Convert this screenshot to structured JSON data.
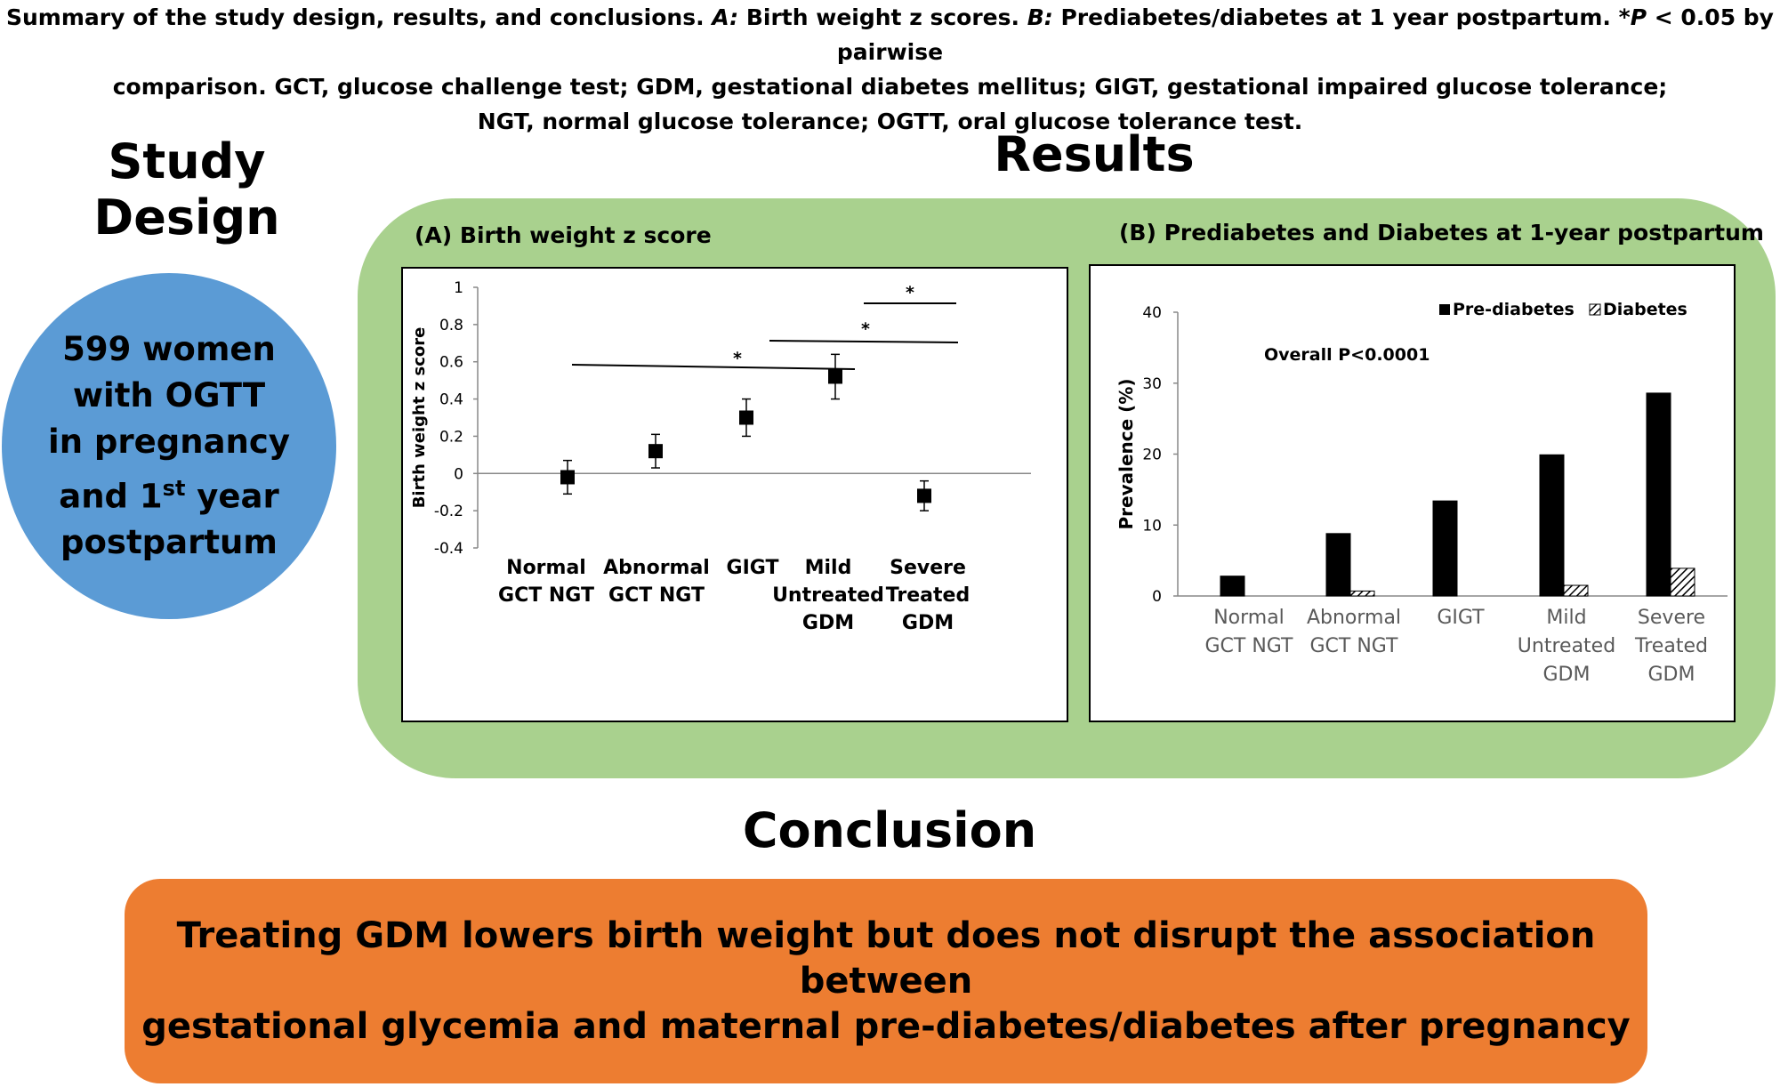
{
  "caption": {
    "line1_pre": "Summary of the study design, results, and conclusions. ",
    "a_label": "A:",
    "line1_mid": " Birth weight z scores. ",
    "b_label": "B:",
    "line1_post": " Prediabetes/diabetes at 1 year postpartum. *",
    "p_label": "P",
    "line1_end": " < 0.05 by pairwise",
    "line2": "comparison. GCT, glucose challenge test; GDM, gestational diabetes mellitus; GIGT, gestational impaired glucose tolerance;",
    "line3": "NGT, normal glucose tolerance; OGTT, oral glucose tolerance test."
  },
  "study_design": {
    "title": "Study Design",
    "circle_lines": [
      "599 women",
      "with OGTT",
      "in pregnancy"
    ],
    "circle_line4_pre": "and 1",
    "circle_line4_sup": "st",
    "circle_line4_post": " year",
    "circle_line5": "postpartum"
  },
  "results": {
    "title": "Results"
  },
  "conclusion": {
    "title": "Conclusion",
    "line1": "Treating GDM lowers birth weight but does not disrupt the association between",
    "line2": "gestational glycemia and maternal pre-diabetes/diabetes after pregnancy"
  },
  "colors": {
    "circle": "#5b9bd5",
    "results_panel": "#a9d18e",
    "conclusion": "#ed7d31"
  },
  "chart_data": [
    {
      "type": "scatter",
      "title": "(A) Birth weight z score",
      "ylabel": "Birth weight z score",
      "ylim": [
        -0.4,
        1
      ],
      "yticks": [
        "1",
        "0.8",
        "0.6",
        "0.4",
        "0.2",
        "0",
        "-0.2",
        "-0.4"
      ],
      "ytick_values": [
        1,
        0.8,
        0.6,
        0.4,
        0.2,
        0,
        -0.2,
        -0.4
      ],
      "categories": [
        [
          "Normal",
          "GCT NGT"
        ],
        [
          "Abnormal",
          "GCT NGT"
        ],
        [
          "GIGT"
        ],
        [
          "Mild",
          "Untreated",
          "GDM"
        ],
        [
          "Severe",
          "Treated",
          "GDM"
        ]
      ],
      "values": [
        -0.02,
        0.12,
        0.3,
        0.52,
        -0.12
      ],
      "error_low": [
        -0.11,
        0.03,
        0.2,
        0.4,
        -0.2
      ],
      "error_high": [
        0.07,
        0.21,
        0.4,
        0.64,
        -0.04
      ],
      "significance": [
        {
          "from": 0,
          "to": 3,
          "label": "*"
        },
        {
          "from": 2,
          "to": 4,
          "label": "*"
        },
        {
          "from": 3,
          "to": 4,
          "label": "*"
        }
      ],
      "grid": false
    },
    {
      "type": "bar",
      "title": "(B) Prediabetes and Diabetes at 1-year postpartum",
      "ylabel": "Prevalence (%)",
      "ylim": [
        0,
        40
      ],
      "yticks": [
        "40",
        "30",
        "20",
        "10",
        "0"
      ],
      "ytick_values": [
        40,
        30,
        20,
        10,
        0
      ],
      "annotation": "Overall P<0.0001",
      "legend_placement": "top-right",
      "categories": [
        [
          "Normal",
          "GCT NGT"
        ],
        [
          "Abnormal",
          "GCT NGT"
        ],
        [
          "GIGT"
        ],
        [
          "Mild",
          "Untreated",
          "GDM"
        ],
        [
          "Severe",
          "Treated",
          "GDM"
        ]
      ],
      "series": [
        {
          "name": "Pre-diabetes",
          "values": [
            2.8,
            8.8,
            13.4,
            19.9,
            28.6
          ],
          "fill": "#000000"
        },
        {
          "name": "Diabetes",
          "values": [
            0,
            0.7,
            0,
            1.5,
            3.9
          ],
          "fill": "hatch"
        }
      ],
      "grid": false
    }
  ]
}
